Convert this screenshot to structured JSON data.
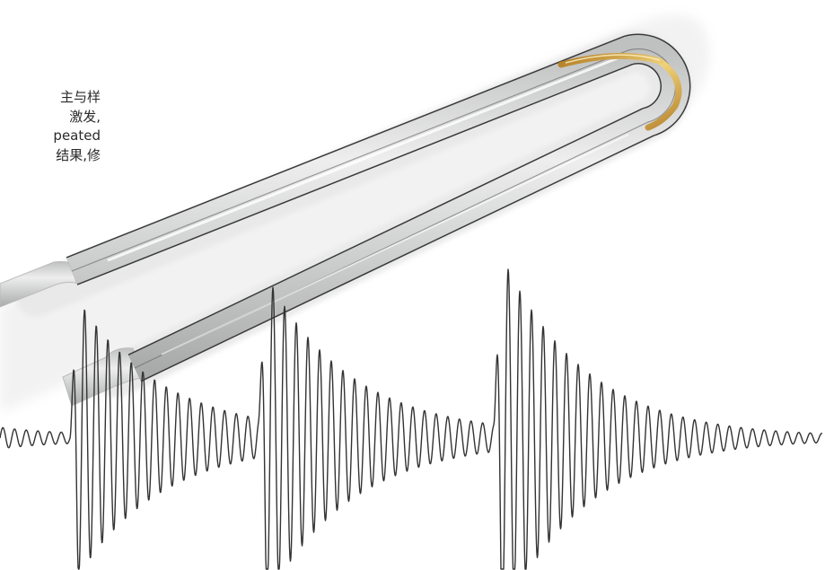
{
  "caption": {
    "lines": [
      "主与样",
      "激发,",
      "peated",
      "结果,修"
    ]
  },
  "figure": {
    "tube_icon": "u-shaped-glass-tube",
    "signal_icon": "damped-oscillation-waveform",
    "colors": {
      "tube_body": "#cfd0d0",
      "tube_outline": "#3a3a3a",
      "gold_band": "#d9a33a",
      "waveform": "#333333",
      "text": "#2a2a2a"
    },
    "bursts": [
      {
        "onset": 0.12,
        "peak": 1.0
      },
      {
        "onset": 0.41,
        "peak": 1.0
      },
      {
        "onset": 0.68,
        "peak": 1.0
      }
    ]
  }
}
